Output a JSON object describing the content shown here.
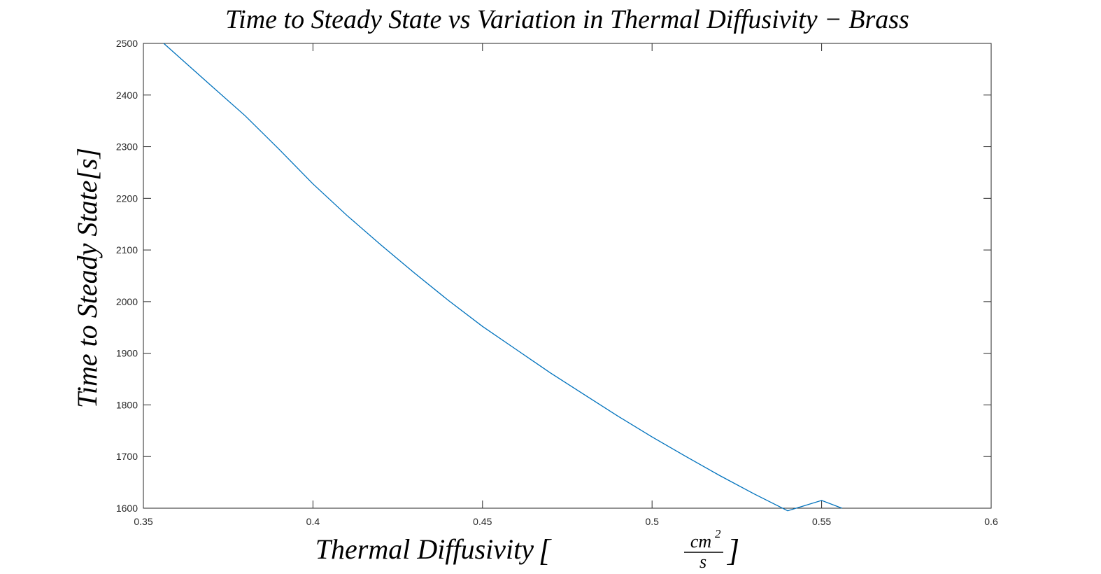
{
  "chart_data": {
    "type": "line",
    "title": "Time to Steady State vs Variation in Thermal Diffusivity − Brass",
    "xlabel": "Thermal Diffusivity [cm²/s]",
    "xlabel_main": "Thermal Diffusivity",
    "xlabel_unit_num": "cm",
    "xlabel_unit_exp": "2",
    "xlabel_unit_den": "s",
    "ylabel": "Time to Steady State[s]",
    "xlim": [
      0.35,
      0.6
    ],
    "ylim": [
      1600,
      2500
    ],
    "xticks": [
      0.35,
      0.4,
      0.45,
      0.5,
      0.55,
      0.6
    ],
    "xtick_labels": [
      "0.35",
      "0.4",
      "0.45",
      "0.5",
      "0.55",
      "0.6"
    ],
    "yticks": [
      1600,
      1700,
      1800,
      1900,
      2000,
      2100,
      2200,
      2300,
      2400,
      2500
    ],
    "ytick_labels": [
      "1600",
      "1700",
      "1800",
      "1900",
      "2000",
      "2100",
      "2200",
      "2300",
      "2400",
      "2500"
    ],
    "grid": false,
    "line_color": "#0072BD",
    "series": [
      {
        "x": [
          0.356,
          0.37,
          0.38,
          0.39,
          0.4,
          0.41,
          0.42,
          0.43,
          0.44,
          0.45,
          0.46,
          0.47,
          0.48,
          0.49,
          0.5,
          0.51,
          0.52,
          0.53,
          0.54,
          0.55,
          0.556
        ],
        "y": [
          2500,
          2418,
          2360,
          2295,
          2228,
          2167,
          2110,
          2055,
          2002,
          1952,
          1907,
          1862,
          1820,
          1778,
          1738,
          1700,
          1663,
          1628,
          1595,
          1615,
          1600
        ]
      }
    ]
  }
}
